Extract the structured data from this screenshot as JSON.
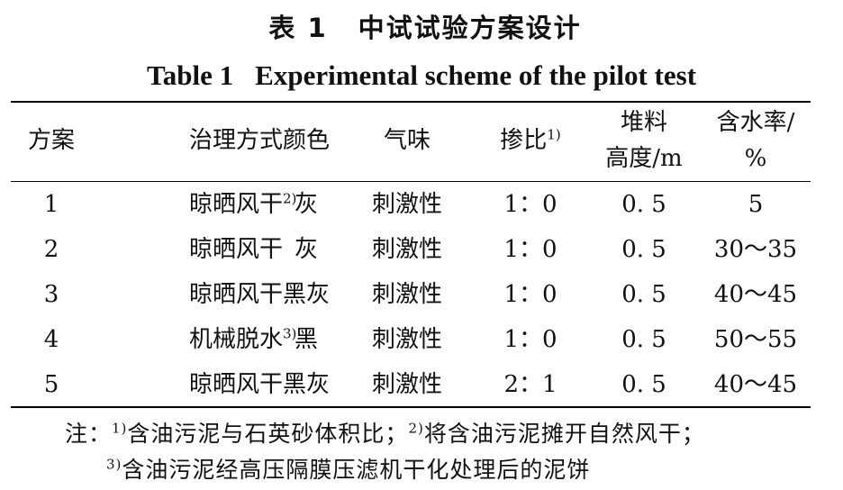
{
  "title_cn": {
    "label": "表 1",
    "text": "中试试验方案设计"
  },
  "title_en": {
    "label": "Table 1",
    "text": "Experimental scheme of the pilot test"
  },
  "headers": {
    "scheme": "方案",
    "method": "治理方式",
    "color": "颜色",
    "odor": "气味",
    "ratio": "掺比",
    "ratio_sup": "1)",
    "height_l1": "堆料",
    "height_l2": "高度/m",
    "moisture_l1": "含水率/",
    "moisture_l2": "%"
  },
  "rows": [
    {
      "scheme": "1",
      "method": "晾晒风干",
      "method_sup": "2)",
      "color": "灰",
      "odor": "刺激性",
      "ratio": "1：0",
      "height": "0. 5",
      "moisture": "5"
    },
    {
      "scheme": "2",
      "method": "晾晒风干",
      "method_sup": "",
      "color": "灰",
      "odor": "刺激性",
      "ratio": "1：0",
      "height": "0. 5",
      "moisture": "30～35"
    },
    {
      "scheme": "3",
      "method": "晾晒风干",
      "method_sup": "",
      "color": "黑灰",
      "odor": "刺激性",
      "ratio": "1：0",
      "height": "0. 5",
      "moisture": "40～45"
    },
    {
      "scheme": "4",
      "method": "机械脱水",
      "method_sup": "3)",
      "color": "黑",
      "odor": "刺激性",
      "ratio": "1：0",
      "height": "0. 5",
      "moisture": "50～55"
    },
    {
      "scheme": "5",
      "method": "晾晒风干",
      "method_sup": "",
      "color": "黑灰",
      "odor": "刺激性",
      "ratio": "2：1",
      "height": "0. 5",
      "moisture": "40～45"
    }
  ],
  "notes": {
    "prefix": "注：",
    "sup1": "1)",
    "text1": "含油污泥与石英砂体积比；",
    "sup2": "2)",
    "text2": "将含油污泥摊开自然风干；",
    "sup3": "3)",
    "text3": "含油污泥经高压隔膜压滤机干化处理后的泥饼"
  }
}
